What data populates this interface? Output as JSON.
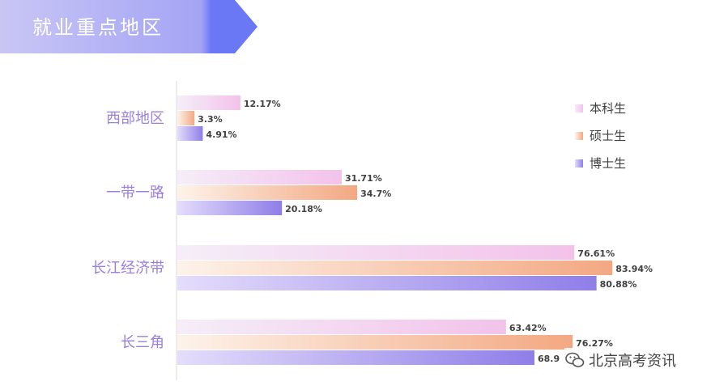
{
  "header": {
    "title": "就业重点地区"
  },
  "chart_data": {
    "type": "bar",
    "orientation": "horizontal",
    "categories": [
      "西部地区",
      "一带一路",
      "长江经济带",
      "长三角"
    ],
    "series": [
      {
        "name": "本科生",
        "values": [
          12.17,
          31.71,
          76.61,
          63.42
        ],
        "labels": [
          "12.17%",
          "31.71%",
          "76.61%",
          "63.42%"
        ],
        "color": "#f3c2ea"
      },
      {
        "name": "硕士生",
        "values": [
          3.3,
          34.7,
          83.94,
          76.27
        ],
        "labels": [
          "3.3%",
          "34.7%",
          "83.94%",
          "76.27%"
        ],
        "color": "#f3a882"
      },
      {
        "name": "博士生",
        "values": [
          4.91,
          20.18,
          80.88,
          68.9
        ],
        "labels": [
          "4.91%",
          "20.18%",
          "80.88%",
          "68.9"
        ],
        "color": "#8f7ee8"
      }
    ],
    "xlim": [
      0,
      100
    ],
    "legend": "right",
    "grid": false
  },
  "watermark": {
    "text": "北京高考资讯",
    "icon": "wechat-icon"
  },
  "colors": {
    "banner": "#6a78f5",
    "banner_light": "#c6c5f6",
    "category_text": "#9b7fde"
  }
}
